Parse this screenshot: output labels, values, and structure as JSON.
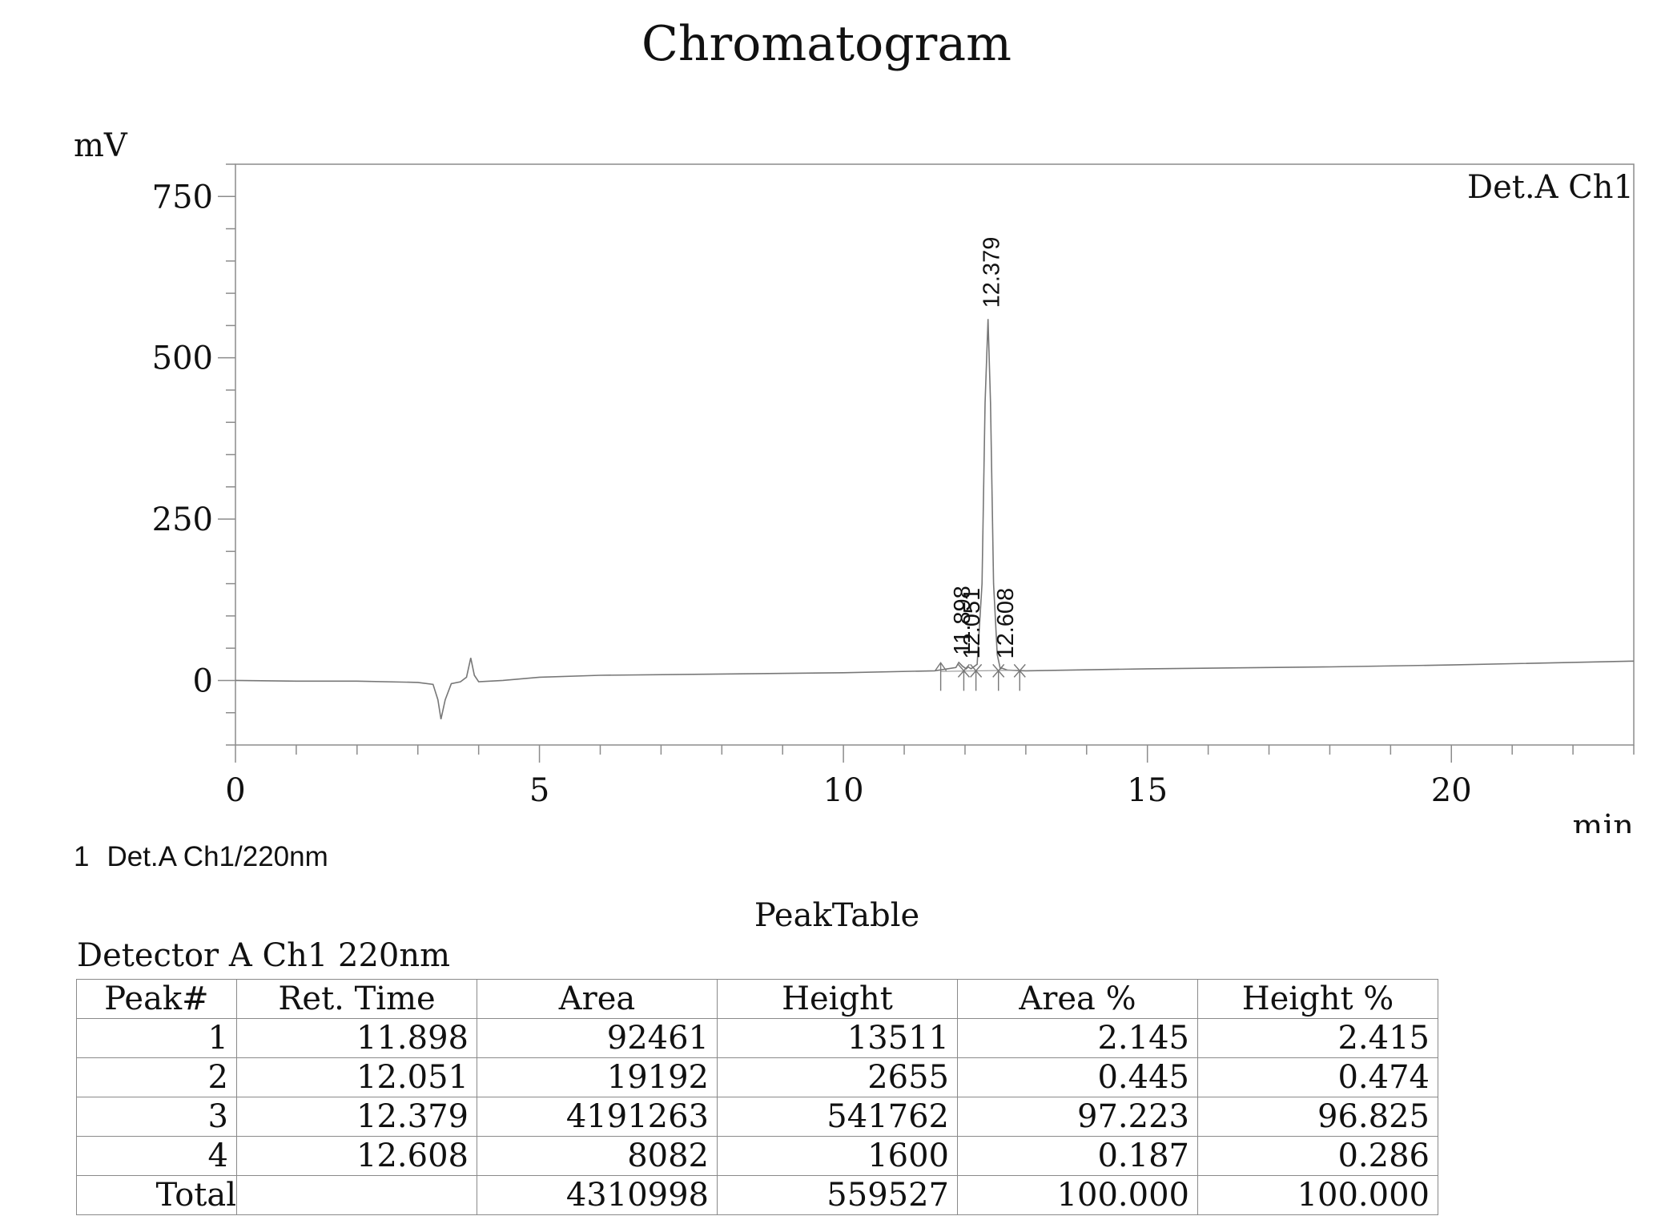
{
  "chart_data": {
    "type": "line",
    "title": "Chromatogram",
    "ylabel": "mV",
    "xlabel": "min",
    "legend_top_right": "Det.A Ch1",
    "xlim": [
      0,
      23
    ],
    "ylim": [
      -100,
      800
    ],
    "x_ticks": [
      0,
      5,
      10,
      15,
      20
    ],
    "y_ticks": [
      0,
      250,
      500,
      750
    ],
    "series": [
      {
        "name": "Det.A Ch1/220nm",
        "points": [
          [
            0,
            0
          ],
          [
            1,
            -1
          ],
          [
            2,
            -1
          ],
          [
            3,
            -3
          ],
          [
            3.25,
            -6
          ],
          [
            3.33,
            -30
          ],
          [
            3.38,
            -60
          ],
          [
            3.45,
            -30
          ],
          [
            3.55,
            -5
          ],
          [
            3.7,
            -2
          ],
          [
            3.8,
            5
          ],
          [
            3.87,
            35
          ],
          [
            3.93,
            8
          ],
          [
            4.0,
            -2
          ],
          [
            4.4,
            0
          ],
          [
            5.0,
            5
          ],
          [
            6,
            8
          ],
          [
            8,
            10
          ],
          [
            10,
            12
          ],
          [
            11.5,
            15
          ],
          [
            11.85,
            20
          ],
          [
            11.898,
            28
          ],
          [
            11.96,
            22
          ],
          [
            12.02,
            18
          ],
          [
            12.051,
            21
          ],
          [
            12.1,
            18
          ],
          [
            12.2,
            25
          ],
          [
            12.28,
            150
          ],
          [
            12.33,
            430
          ],
          [
            12.379,
            560
          ],
          [
            12.42,
            430
          ],
          [
            12.47,
            150
          ],
          [
            12.53,
            40
          ],
          [
            12.58,
            18
          ],
          [
            12.608,
            19
          ],
          [
            12.7,
            16
          ],
          [
            13,
            15
          ],
          [
            15,
            18
          ],
          [
            18,
            21
          ],
          [
            20,
            24
          ],
          [
            23,
            30
          ]
        ]
      }
    ],
    "peak_labels": [
      "11.898",
      "12.051",
      "12.379",
      "12.608"
    ],
    "peak_label_x": [
      11.898,
      12.051,
      12.379,
      12.608
    ],
    "peak_label_y": [
      22,
      16,
      560,
      16
    ],
    "integration_markers_x": [
      11.6,
      11.98,
      12.18,
      12.55,
      12.9
    ]
  },
  "legend": {
    "number": "1",
    "label": "Det.A Ch1/220nm"
  },
  "peak_table": {
    "title": "PeakTable",
    "detector": "Detector A Ch1 220nm",
    "headers": [
      "Peak#",
      "Ret. Time",
      "Area",
      "Height",
      "Area %",
      "Height %"
    ],
    "rows": [
      [
        "1",
        "11.898",
        "92461",
        "13511",
        "2.145",
        "2.415"
      ],
      [
        "2",
        "12.051",
        "19192",
        "2655",
        "0.445",
        "0.474"
      ],
      [
        "3",
        "12.379",
        "4191263",
        "541762",
        "97.223",
        "96.825"
      ],
      [
        "4",
        "12.608",
        "8082",
        "1600",
        "0.187",
        "0.286"
      ]
    ],
    "total": [
      "Total",
      "",
      "4310998",
      "559527",
      "100.000",
      "100.000"
    ]
  }
}
